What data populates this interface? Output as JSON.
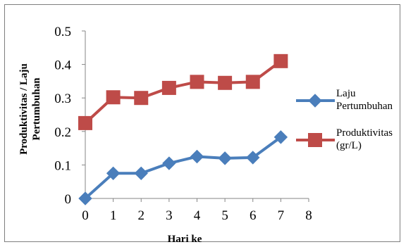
{
  "chart_data": {
    "type": "line",
    "title": "",
    "xlabel": "Hari ke",
    "ylabel_lines": [
      "Produktivitas / Laju",
      "Pertumbuhan"
    ],
    "xlim": [
      0,
      8
    ],
    "ylim": [
      0,
      0.5
    ],
    "x_ticks": [
      "0",
      "1",
      "2",
      "3",
      "4",
      "5",
      "6",
      "7",
      "8"
    ],
    "y_ticks": [
      "0",
      "0.1",
      "0.2",
      "0.3",
      "0.4",
      "0.5"
    ],
    "grid": false,
    "legend_placement": "right",
    "x": [
      0,
      1,
      2,
      3,
      4,
      5,
      6,
      7
    ],
    "series": [
      {
        "name": "Laju Pertumbuhan",
        "legend_lines": [
          "Laju",
          "Pertumbuhan"
        ],
        "marker": "diamond",
        "color": "#4a7ebb",
        "values": [
          0.0,
          0.075,
          0.075,
          0.105,
          0.125,
          0.12,
          0.122,
          0.183
        ]
      },
      {
        "name": "Produktivitas (gr/L)",
        "legend_lines": [
          "Produktivitas",
          "(gr/L)"
        ],
        "marker": "square",
        "color": "#be4b48",
        "values": [
          0.225,
          0.302,
          0.3,
          0.33,
          0.348,
          0.345,
          0.348,
          0.41
        ]
      }
    ]
  }
}
